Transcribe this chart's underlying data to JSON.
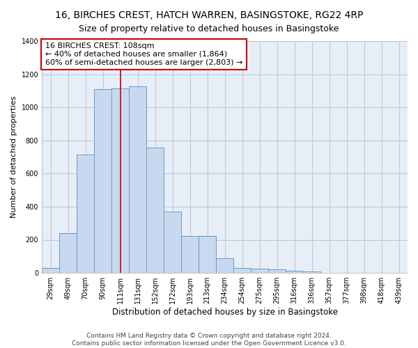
{
  "title": "16, BIRCHES CREST, HATCH WARREN, BASINGSTOKE, RG22 4RP",
  "subtitle": "Size of property relative to detached houses in Basingstoke",
  "xlabel": "Distribution of detached houses by size in Basingstoke",
  "ylabel": "Number of detached properties",
  "categories": [
    "29sqm",
    "49sqm",
    "70sqm",
    "90sqm",
    "111sqm",
    "131sqm",
    "152sqm",
    "172sqm",
    "193sqm",
    "213sqm",
    "234sqm",
    "254sqm",
    "275sqm",
    "295sqm",
    "316sqm",
    "336sqm",
    "357sqm",
    "377sqm",
    "398sqm",
    "418sqm",
    "439sqm"
  ],
  "values": [
    30,
    240,
    715,
    1110,
    1115,
    1125,
    755,
    370,
    225,
    225,
    90,
    30,
    25,
    20,
    15,
    10,
    0,
    0,
    0,
    0,
    0
  ],
  "bar_color": "#c8d9ef",
  "bar_edge_color": "#6699cc",
  "vline_x_index": 4,
  "vline_color": "#cc0000",
  "annotation_line1": "16 BIRCHES CREST: 108sqm",
  "annotation_line2": "← 40% of detached houses are smaller (1,864)",
  "annotation_line3": "60% of semi-detached houses are larger (2,803) →",
  "annotation_box_color": "#cc0000",
  "ylim": [
    0,
    1400
  ],
  "yticks": [
    0,
    200,
    400,
    600,
    800,
    1000,
    1200,
    1400
  ],
  "bg_color": "#e8eef8",
  "grid_color": "#c0c8d8",
  "footer_line1": "Contains HM Land Registry data © Crown copyright and database right 2024.",
  "footer_line2": "Contains public sector information licensed under the Open Government Licence v3.0.",
  "title_fontsize": 10,
  "xlabel_fontsize": 8.5,
  "ylabel_fontsize": 8,
  "tick_fontsize": 7,
  "annotation_fontsize": 8,
  "footer_fontsize": 6.5
}
